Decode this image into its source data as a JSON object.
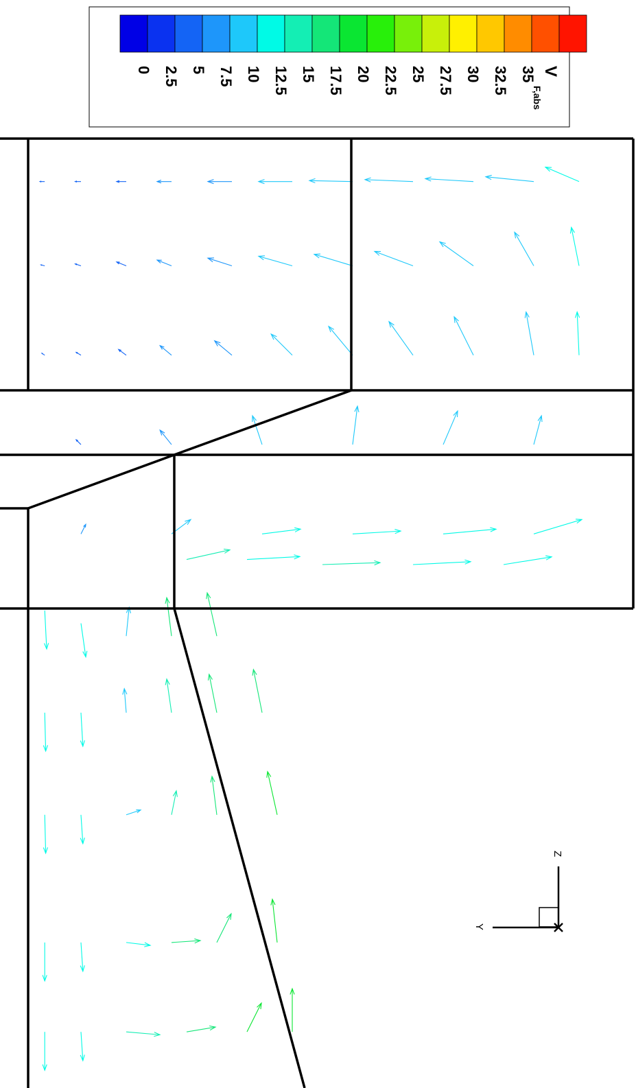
{
  "chart_data": {
    "type": "vector",
    "colorbar": {
      "title_main": "V",
      "title_sub": "F,abs",
      "levels": [
        "0",
        "2.5",
        "5",
        "7.5",
        "10",
        "12.5",
        "15",
        "17.5",
        "20",
        "22.5",
        "25",
        "27.5",
        "30",
        "32.5",
        "35"
      ],
      "colors": [
        "#0000e6",
        "#0a32f0",
        "#1464f5",
        "#1e96fa",
        "#1ec8fa",
        "#00fae6",
        "#14eeb4",
        "#14e678",
        "#0ae632",
        "#28f00a",
        "#78f00a",
        "#c8f00a",
        "#fff000",
        "#ffc800",
        "#ff8c00",
        "#ff5000",
        "#ff1400"
      ]
    },
    "axes_triad": {
      "z_label": "Z",
      "y_label": "Y"
    },
    "vectors": [
      {
        "x": 0.8,
        "y": 34.8,
        "u": -0.5,
        "v": 0.0,
        "speed": 3.0
      },
      {
        "x": 2.0,
        "y": 34.8,
        "u": -0.6,
        "v": 0.0,
        "speed": 3.5
      },
      {
        "x": 3.5,
        "y": 34.8,
        "u": -1.0,
        "v": 0.0,
        "speed": 4.5
      },
      {
        "x": 5.0,
        "y": 34.8,
        "u": -1.5,
        "v": 0.0,
        "speed": 5.5
      },
      {
        "x": 7.0,
        "y": 34.8,
        "u": -2.5,
        "v": 0.0,
        "speed": 6.5
      },
      {
        "x": 9.0,
        "y": 34.8,
        "u": -3.5,
        "v": 0.0,
        "speed": 7.5
      },
      {
        "x": 11.0,
        "y": 34.8,
        "u": -4.5,
        "v": 0.1,
        "speed": 8.0
      },
      {
        "x": 13.0,
        "y": 34.8,
        "u": -5.0,
        "v": 0.2,
        "speed": 8.5
      },
      {
        "x": 15.0,
        "y": 34.8,
        "u": -5.0,
        "v": 0.3,
        "speed": 9.0
      },
      {
        "x": 17.0,
        "y": 34.8,
        "u": -5.0,
        "v": 0.5,
        "speed": 9.5
      },
      {
        "x": 18.5,
        "y": 34.8,
        "u": -3.5,
        "v": 1.5,
        "speed": 10.0
      },
      {
        "x": 0.8,
        "y": 31.5,
        "u": -0.4,
        "v": 0.1,
        "speed": 3.0
      },
      {
        "x": 2.0,
        "y": 31.5,
        "u": -0.6,
        "v": 0.2,
        "speed": 3.5
      },
      {
        "x": 3.5,
        "y": 31.5,
        "u": -1.0,
        "v": 0.4,
        "speed": 4.5
      },
      {
        "x": 5.0,
        "y": 31.5,
        "u": -1.5,
        "v": 0.6,
        "speed": 5.5
      },
      {
        "x": 7.0,
        "y": 31.5,
        "u": -2.5,
        "v": 0.8,
        "speed": 6.5
      },
      {
        "x": 9.0,
        "y": 31.5,
        "u": -3.5,
        "v": 1.0,
        "speed": 7.5
      },
      {
        "x": 11.0,
        "y": 31.5,
        "u": -4.0,
        "v": 1.2,
        "speed": 8.0
      },
      {
        "x": 13.0,
        "y": 31.5,
        "u": -4.0,
        "v": 1.5,
        "speed": 8.5
      },
      {
        "x": 15.0,
        "y": 31.5,
        "u": -3.5,
        "v": 2.5,
        "speed": 9.0
      },
      {
        "x": 17.0,
        "y": 31.5,
        "u": -2.0,
        "v": 3.5,
        "speed": 9.5
      },
      {
        "x": 18.5,
        "y": 31.5,
        "u": -0.8,
        "v": 4.0,
        "speed": 10.0
      },
      {
        "x": 0.8,
        "y": 28.0,
        "u": -0.3,
        "v": 0.2,
        "speed": 3.0
      },
      {
        "x": 2.0,
        "y": 28.0,
        "u": -0.5,
        "v": 0.3,
        "speed": 3.5
      },
      {
        "x": 3.5,
        "y": 28.0,
        "u": -0.8,
        "v": 0.6,
        "speed": 4.5
      },
      {
        "x": 5.0,
        "y": 28.0,
        "u": -1.2,
        "v": 1.0,
        "speed": 5.5
      },
      {
        "x": 7.0,
        "y": 28.0,
        "u": -1.8,
        "v": 1.5,
        "speed": 6.5
      },
      {
        "x": 9.0,
        "y": 28.0,
        "u": -2.2,
        "v": 2.2,
        "speed": 7.5
      },
      {
        "x": 11.0,
        "y": 28.0,
        "u": -2.5,
        "v": 3.0,
        "speed": 8.0
      },
      {
        "x": 13.0,
        "y": 28.0,
        "u": -2.5,
        "v": 3.5,
        "speed": 8.5
      },
      {
        "x": 15.0,
        "y": 28.0,
        "u": -2.0,
        "v": 4.0,
        "speed": 9.0
      },
      {
        "x": 17.0,
        "y": 28.0,
        "u": -0.8,
        "v": 4.5,
        "speed": 9.5
      },
      {
        "x": 18.5,
        "y": 28.0,
        "u": -0.2,
        "v": 4.5,
        "speed": 10.0
      },
      {
        "x": 2.0,
        "y": 24.5,
        "u": -0.5,
        "v": 0.5,
        "speed": 4.0
      },
      {
        "x": 5.0,
        "y": 24.5,
        "u": -1.2,
        "v": 1.5,
        "speed": 6.0
      },
      {
        "x": 8.0,
        "y": 24.5,
        "u": -1.0,
        "v": 3.0,
        "speed": 7.5
      },
      {
        "x": 11.0,
        "y": 24.5,
        "u": 0.5,
        "v": 4.0,
        "speed": 8.5
      },
      {
        "x": 14.0,
        "y": 24.5,
        "u": 1.5,
        "v": 3.5,
        "speed": 9.0
      },
      {
        "x": 17.0,
        "y": 24.5,
        "u": 0.8,
        "v": 3.0,
        "speed": 9.5
      },
      {
        "x": 2.0,
        "y": 21.0,
        "u": 0.5,
        "v": 1.0,
        "speed": 5.0
      },
      {
        "x": 5.0,
        "y": 21.0,
        "u": 2.0,
        "v": 1.5,
        "speed": 8.0
      },
      {
        "x": 8.0,
        "y": 21.0,
        "u": 4.0,
        "v": 0.5,
        "speed": 10.0
      },
      {
        "x": 11.0,
        "y": 21.0,
        "u": 5.0,
        "v": 0.3,
        "speed": 10.5
      },
      {
        "x": 14.0,
        "y": 21.0,
        "u": 5.5,
        "v": 0.5,
        "speed": 11.0
      },
      {
        "x": 17.0,
        "y": 21.0,
        "u": 5.0,
        "v": 1.5,
        "speed": 10.5
      },
      {
        "x": 5.5,
        "y": 20.0,
        "u": 4.5,
        "v": 1.0,
        "speed": 14.0
      },
      {
        "x": 7.5,
        "y": 20.0,
        "u": 5.5,
        "v": 0.3,
        "speed": 12.0
      },
      {
        "x": 10.0,
        "y": 19.8,
        "u": 6.0,
        "v": 0.2,
        "speed": 12.5
      },
      {
        "x": 13.0,
        "y": 19.8,
        "u": 6.0,
        "v": 0.3,
        "speed": 12.0
      },
      {
        "x": 16.0,
        "y": 19.8,
        "u": 5.0,
        "v": 0.8,
        "speed": 11.5
      },
      {
        "x": 0.8,
        "y": 18.0,
        "u": 0.2,
        "v": -4.0,
        "speed": 12.0
      },
      {
        "x": 2.0,
        "y": 17.5,
        "u": 0.5,
        "v": -3.5,
        "speed": 11.5
      },
      {
        "x": 3.5,
        "y": 17.0,
        "u": 0.3,
        "v": 3.0,
        "speed": 9.0
      },
      {
        "x": 5.0,
        "y": 17.0,
        "u": -0.5,
        "v": 4.0,
        "speed": 15.0
      },
      {
        "x": 6.5,
        "y": 17.0,
        "u": -1.0,
        "v": 4.5,
        "speed": 17.0
      },
      {
        "x": 0.8,
        "y": 14.0,
        "u": 0.1,
        "v": -4.0,
        "speed": 11.5
      },
      {
        "x": 2.0,
        "y": 14.0,
        "u": 0.2,
        "v": -3.5,
        "speed": 11.0
      },
      {
        "x": 3.5,
        "y": 14.0,
        "u": -0.2,
        "v": 2.5,
        "speed": 9.5
      },
      {
        "x": 5.0,
        "y": 14.0,
        "u": -0.5,
        "v": 3.5,
        "speed": 14.0
      },
      {
        "x": 6.5,
        "y": 14.0,
        "u": -0.8,
        "v": 4.0,
        "speed": 16.5
      },
      {
        "x": 8.0,
        "y": 14.0,
        "u": -0.9,
        "v": 4.5,
        "speed": 17.0
      },
      {
        "x": 0.8,
        "y": 10.0,
        "u": 0.1,
        "v": -4.0,
        "speed": 11.0
      },
      {
        "x": 2.0,
        "y": 10.0,
        "u": 0.2,
        "v": -3.0,
        "speed": 10.5
      },
      {
        "x": 3.5,
        "y": 10.0,
        "u": 1.5,
        "v": 0.5,
        "speed": 9.0
      },
      {
        "x": 5.0,
        "y": 10.0,
        "u": 0.5,
        "v": 2.5,
        "speed": 13.0
      },
      {
        "x": 6.5,
        "y": 10.0,
        "u": -0.5,
        "v": 4.0,
        "speed": 16.0
      },
      {
        "x": 8.5,
        "y": 10.0,
        "u": -1.0,
        "v": 4.5,
        "speed": 17.5
      },
      {
        "x": 0.8,
        "y": 5.0,
        "u": 0.0,
        "v": -4.0,
        "speed": 11.0
      },
      {
        "x": 2.0,
        "y": 5.0,
        "u": 0.2,
        "v": -3.0,
        "speed": 10.5
      },
      {
        "x": 3.5,
        "y": 5.0,
        "u": 2.5,
        "v": -0.3,
        "speed": 11.0
      },
      {
        "x": 5.0,
        "y": 5.0,
        "u": 3.0,
        "v": 0.2,
        "speed": 15.0
      },
      {
        "x": 6.5,
        "y": 5.0,
        "u": 1.5,
        "v": 3.0,
        "speed": 16.5
      },
      {
        "x": 8.5,
        "y": 5.0,
        "u": -0.5,
        "v": 4.5,
        "speed": 18.0
      },
      {
        "x": 0.8,
        "y": 1.5,
        "u": 0.0,
        "v": -4.0,
        "speed": 11.0
      },
      {
        "x": 2.0,
        "y": 1.5,
        "u": 0.2,
        "v": -3.0,
        "speed": 10.5
      },
      {
        "x": 3.5,
        "y": 1.5,
        "u": 3.5,
        "v": -0.3,
        "speed": 12.5
      },
      {
        "x": 5.5,
        "y": 1.5,
        "u": 3.0,
        "v": 0.5,
        "speed": 16.0
      },
      {
        "x": 7.5,
        "y": 1.5,
        "u": 1.5,
        "v": 3.0,
        "speed": 17.5
      },
      {
        "x": 9.0,
        "y": 1.5,
        "u": 0.0,
        "v": 4.5,
        "speed": 18.5
      }
    ]
  }
}
